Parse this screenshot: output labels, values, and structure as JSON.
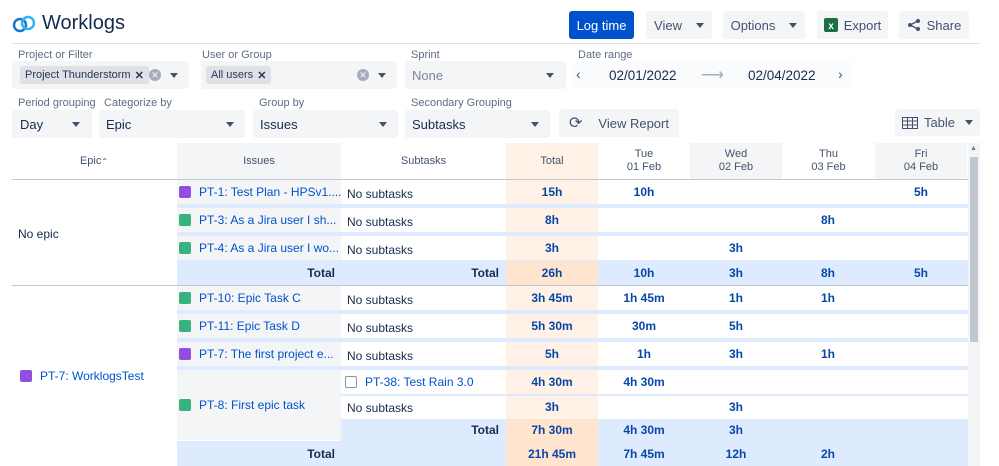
{
  "app": {
    "title": "Worklogs"
  },
  "toolbar": {
    "log_time": "Log time",
    "view": "View",
    "options": "Options",
    "export": "Export",
    "share": "Share"
  },
  "filters": {
    "project_label": "Project or Filter",
    "project_tag": "Project Thunderstorm",
    "user_label": "User or Group",
    "user_tag": "All users",
    "sprint_label": "Sprint",
    "sprint_placeholder": "None",
    "date_label": "Date range",
    "date_from": "02/01/2022",
    "date_to": "02/04/2022",
    "period_label": "Period grouping",
    "period_value": "Day",
    "categorize_label": "Categorize by",
    "categorize_value": "Epic",
    "group_label": "Group by",
    "group_value": "Issues",
    "secondary_label": "Secondary Grouping",
    "secondary_value": "Subtasks",
    "view_report": "View Report",
    "table": "Table"
  },
  "columns": {
    "epic": "Epic",
    "issues": "Issues",
    "subtasks": "Subtasks",
    "total": "Total",
    "days": [
      {
        "dow": "Tue",
        "date": "01 Feb"
      },
      {
        "dow": "Wed",
        "date": "02 Feb"
      },
      {
        "dow": "Thu",
        "date": "03 Feb"
      },
      {
        "dow": "Fri",
        "date": "04 Feb"
      }
    ]
  },
  "groups": [
    {
      "epic": "No epic",
      "rows": [
        {
          "issue": "PT-1: Test Plan - HPSv1....",
          "type": "epic",
          "subtask": "No subtasks",
          "total": "15h",
          "days": [
            "10h",
            "",
            "",
            "5h"
          ]
        },
        {
          "issue": "PT-3: As a Jira user I sh...",
          "type": "story",
          "subtask": "No subtasks",
          "total": "8h",
          "days": [
            "",
            "",
            "8h",
            ""
          ]
        },
        {
          "issue": "PT-4: As a Jira user I wo...",
          "type": "story",
          "subtask": "No subtasks",
          "total": "3h",
          "days": [
            "",
            "3h",
            "",
            ""
          ]
        }
      ],
      "total_label": "Total",
      "issues_total_label": "Total",
      "totals": {
        "total": "26h",
        "days": [
          "10h",
          "3h",
          "8h",
          "5h"
        ]
      }
    },
    {
      "epic": "PT-7: WorklogsTest",
      "rows": [
        {
          "issue": "PT-10: Epic Task C",
          "type": "story",
          "subtask": "No subtasks",
          "total": "3h 45m",
          "days": [
            "1h 45m",
            "1h",
            "1h",
            ""
          ]
        },
        {
          "issue": "PT-11: Epic Task D",
          "type": "story",
          "subtask": "No subtasks",
          "total": "5h 30m",
          "days": [
            "30m",
            "5h",
            "",
            ""
          ]
        },
        {
          "issue": "PT-7: The first project e...",
          "type": "epic",
          "subtask": "No subtasks",
          "total": "5h",
          "days": [
            "1h",
            "3h",
            "1h",
            ""
          ]
        }
      ],
      "pt8": {
        "issue": "PT-8: First epic task",
        "sub1": {
          "name": "PT-38: Test Rain 3.0",
          "total": "4h 30m",
          "days": [
            "4h 30m",
            "",
            "",
            ""
          ]
        },
        "sub2": {
          "name": "No subtasks",
          "total": "3h",
          "days": [
            "",
            "3h",
            "",
            ""
          ]
        },
        "sub_total_label": "Total",
        "sub_totals": {
          "total": "7h 30m",
          "days": [
            "4h 30m",
            "3h",
            "",
            ""
          ]
        }
      },
      "total_label": "Total",
      "totals": {
        "total": "21h 45m",
        "days": [
          "7h 45m",
          "12h",
          "2h",
          ""
        ]
      }
    }
  ]
}
